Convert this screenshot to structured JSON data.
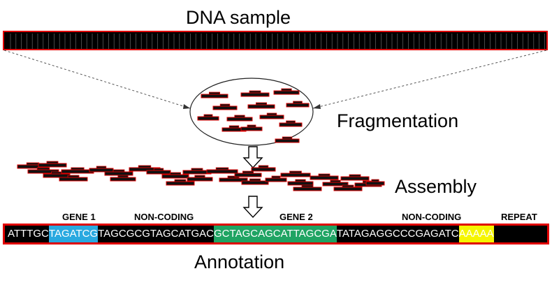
{
  "title": "DNA sample",
  "steps": {
    "fragmentation": "Fragmentation",
    "assembly": "Assembly",
    "annotation": "Annotation"
  },
  "regions": {
    "gene1": "GENE 1",
    "noncoding1": "NON-CODING",
    "gene2": "GENE 2",
    "noncoding2": "NON-CODING",
    "repeat": "REPEAT"
  },
  "sequence": [
    {
      "text": "ATTTGC",
      "bg": "#000000",
      "fg": "#ffffff"
    },
    {
      "text": "TAGATCG",
      "bg": "#29a9e0",
      "fg": "#ffffff"
    },
    {
      "text": "TAGCGCGTAGCATGAC",
      "bg": "#000000",
      "fg": "#ffffff"
    },
    {
      "text": "GCTAGCAGCATTAGCGA",
      "bg": "#1fa463",
      "fg": "#ffffff"
    },
    {
      "text": "TATAGAGGCCCGAGATC",
      "bg": "#000000",
      "fg": "#ffffff"
    },
    {
      "text": "AAAAA",
      "bg": "#f5f500",
      "fg": "#ffffff"
    }
  ],
  "colors": {
    "fragment_fill": "#111111",
    "fragment_border": "#e00000",
    "dna_border": "#e00000",
    "gene1": "#29a9e0",
    "gene2": "#1fa463",
    "repeat": "#f5f500"
  }
}
